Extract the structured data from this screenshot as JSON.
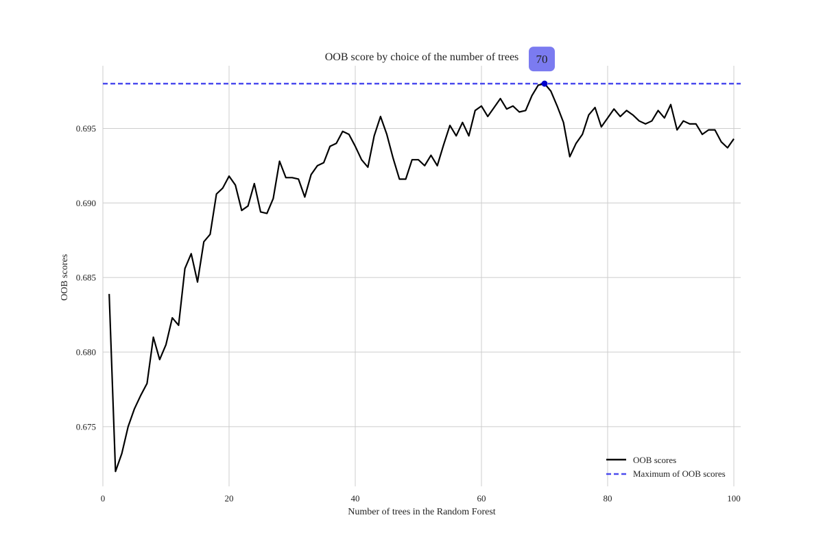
{
  "chart_data": {
    "type": "line",
    "title": "OOB score by choice of the number of trees",
    "xlabel": "Number of trees in the Random Forest",
    "ylabel": "OOB scores",
    "xlim": [
      0,
      100
    ],
    "ylim": [
      0.671,
      0.6992
    ],
    "xticks": [
      0,
      20,
      40,
      60,
      80,
      100
    ],
    "yticks": [
      0.675,
      0.68,
      0.685,
      0.69,
      0.695
    ],
    "ytick_labels": [
      "0.675",
      "0.680",
      "0.685",
      "0.690",
      "0.695"
    ],
    "grid": true,
    "legend": {
      "placement": "lower-right",
      "entries": [
        {
          "label": "OOB scores",
          "style": "solid",
          "color": "#000000"
        },
        {
          "label": "Maximum of OOB scores",
          "style": "dashed",
          "color": "#4a4aee"
        }
      ]
    },
    "series": [
      {
        "name": "OOB scores",
        "color": "#000000",
        "x": [
          1,
          2,
          3,
          4,
          5,
          6,
          7,
          8,
          9,
          10,
          11,
          12,
          13,
          14,
          15,
          16,
          17,
          18,
          19,
          20,
          21,
          22,
          23,
          24,
          25,
          26,
          27,
          28,
          29,
          30,
          31,
          32,
          33,
          34,
          35,
          36,
          37,
          38,
          39,
          40,
          41,
          42,
          43,
          44,
          45,
          46,
          47,
          48,
          49,
          50,
          51,
          52,
          53,
          54,
          55,
          56,
          57,
          58,
          59,
          60,
          61,
          62,
          63,
          64,
          65,
          66,
          67,
          68,
          69,
          70,
          71,
          72,
          73,
          74,
          75,
          76,
          77,
          78,
          79,
          80,
          81,
          82,
          83,
          84,
          85,
          86,
          87,
          88,
          89,
          90,
          91,
          92,
          93,
          94,
          95,
          96,
          97,
          98,
          99,
          100
        ],
        "y": [
          0.6839,
          0.672,
          0.6732,
          0.675,
          0.6762,
          0.6771,
          0.6779,
          0.681,
          0.6795,
          0.6805,
          0.6823,
          0.6818,
          0.6856,
          0.6866,
          0.6847,
          0.6874,
          0.6879,
          0.6906,
          0.691,
          0.6918,
          0.6912,
          0.6895,
          0.6898,
          0.6913,
          0.6894,
          0.6893,
          0.6903,
          0.6928,
          0.6917,
          0.6917,
          0.6916,
          0.6904,
          0.6919,
          0.6925,
          0.6927,
          0.6938,
          0.694,
          0.6948,
          0.6946,
          0.6938,
          0.6929,
          0.6924,
          0.6945,
          0.6958,
          0.6946,
          0.693,
          0.6916,
          0.6916,
          0.6929,
          0.6929,
          0.6925,
          0.6932,
          0.6925,
          0.6939,
          0.6952,
          0.6945,
          0.6954,
          0.6945,
          0.6962,
          0.6965,
          0.6958,
          0.6964,
          0.697,
          0.6963,
          0.6965,
          0.6961,
          0.6962,
          0.6972,
          0.6979,
          0.698,
          0.6975,
          0.6965,
          0.6954,
          0.6931,
          0.694,
          0.6946,
          0.6959,
          0.6964,
          0.6951,
          0.6957,
          0.6963,
          0.6958,
          0.6962,
          0.6959,
          0.6955,
          0.6953,
          0.6955,
          0.6962,
          0.6957,
          0.6966,
          0.6949,
          0.6955,
          0.6953,
          0.6953,
          0.6946,
          0.6949,
          0.6949,
          0.6941,
          0.6937,
          0.6943
        ]
      },
      {
        "name": "Maximum of OOB scores",
        "color": "#4a4aee",
        "y_constant": 0.698
      }
    ],
    "annotations": [
      {
        "text": "70",
        "x": 70,
        "y": 0.698,
        "marker_color": "#0000cc",
        "box_color": "#7b7bf0"
      }
    ]
  }
}
